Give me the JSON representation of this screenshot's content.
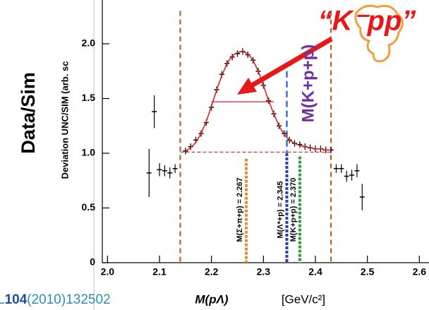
{
  "chart_data": {
    "type": "errorbar",
    "title": "“K⁻pp”",
    "left_label": "Data/Sim",
    "y_label": "Deviation  UNC/SIM  (arb. sc",
    "x_label": "M(pΛ)",
    "x_unit": "[GeV/c²]",
    "reference": {
      "prefix": "L",
      "volume": "104",
      "rest": "(2010)132502"
    },
    "mass_label": "M(K+p+p)",
    "x": [
      2.08,
      2.09,
      2.1,
      2.11,
      2.12,
      2.13,
      2.15,
      2.16,
      2.17,
      2.18,
      2.19,
      2.2,
      2.21,
      2.22,
      2.23,
      2.24,
      2.25,
      2.26,
      2.27,
      2.28,
      2.29,
      2.3,
      2.31,
      2.32,
      2.33,
      2.34,
      2.35,
      2.36,
      2.37,
      2.38,
      2.39,
      2.4,
      2.41,
      2.42,
      2.43,
      2.44,
      2.45,
      2.46,
      2.47,
      2.48,
      2.49
    ],
    "series": [
      {
        "color": "#000000",
        "values": [
          0.82,
          1.38,
          0.85,
          0.84,
          0.82,
          0.86,
          1.02,
          1.06,
          1.12,
          1.18,
          1.28,
          1.42,
          1.58,
          1.72,
          1.82,
          1.88,
          1.91,
          1.93,
          1.9,
          1.85,
          1.75,
          1.62,
          1.48,
          1.36,
          1.25,
          1.18,
          1.12,
          1.09,
          1.08,
          1.06,
          1.05,
          1.04,
          1.04,
          1.03,
          1.03,
          0.86,
          0.86,
          0.79,
          0.8,
          0.84,
          0.6
        ],
        "errors": [
          0.22,
          0.15,
          0.06,
          0.05,
          0.05,
          0.04,
          0.03,
          0.03,
          0.03,
          0.03,
          0.03,
          0.03,
          0.03,
          0.03,
          0.03,
          0.03,
          0.03,
          0.03,
          0.03,
          0.03,
          0.03,
          0.03,
          0.03,
          0.03,
          0.03,
          0.03,
          0.03,
          0.03,
          0.03,
          0.03,
          0.03,
          0.03,
          0.03,
          0.03,
          0.03,
          0.04,
          0.04,
          0.05,
          0.05,
          0.06,
          0.12
        ]
      },
      {
        "color": "#e02020",
        "values": [
          null,
          null,
          null,
          null,
          null,
          null,
          1.02,
          1.05,
          1.1,
          1.18,
          1.29,
          1.43,
          1.58,
          1.71,
          1.82,
          1.89,
          1.92,
          1.93,
          1.91,
          1.85,
          1.75,
          1.62,
          1.48,
          1.36,
          1.25,
          1.17,
          1.12,
          1.09,
          1.07,
          1.06,
          1.05,
          1.04,
          1.04,
          1.03,
          1.03,
          null,
          null,
          null,
          null,
          null,
          null
        ]
      }
    ],
    "xlim": [
      1.99,
      2.605
    ],
    "ylim": [
      0,
      2.3
    ],
    "xticks": [
      {
        "value": 2.0,
        "label": "2.0"
      },
      2.1,
      2.2,
      2.3,
      2.4,
      2.5,
      {
        "value": 2.6,
        "label": "2.6"
      }
    ],
    "yticks": [
      0,
      0.5,
      {
        "value": 1,
        "label": "1.0"
      },
      1.5,
      {
        "value": 2,
        "label": "2.0"
      }
    ],
    "window": [
      2.14,
      2.43
    ],
    "baseline": 1.01,
    "fwhm": {
      "y": 1.47,
      "x": [
        2.2,
        2.32
      ]
    },
    "expected": {
      "value": 2.345,
      "top": 1.75,
      "color": "#3b6fd0"
    },
    "thresholds": [
      {
        "label": "M(Σ+π+p) = 2.267",
        "value": 2.267,
        "top": 0.95,
        "color": "#ee8a2e"
      },
      {
        "label": "M(Λ*+p) = 2.345",
        "value": 2.345,
        "top": 1.0,
        "color": "#2a3fb0"
      },
      {
        "label": "M(K+p+p) = 2.370",
        "value": 2.37,
        "top": 0.97,
        "color": "#27a03a"
      }
    ]
  }
}
